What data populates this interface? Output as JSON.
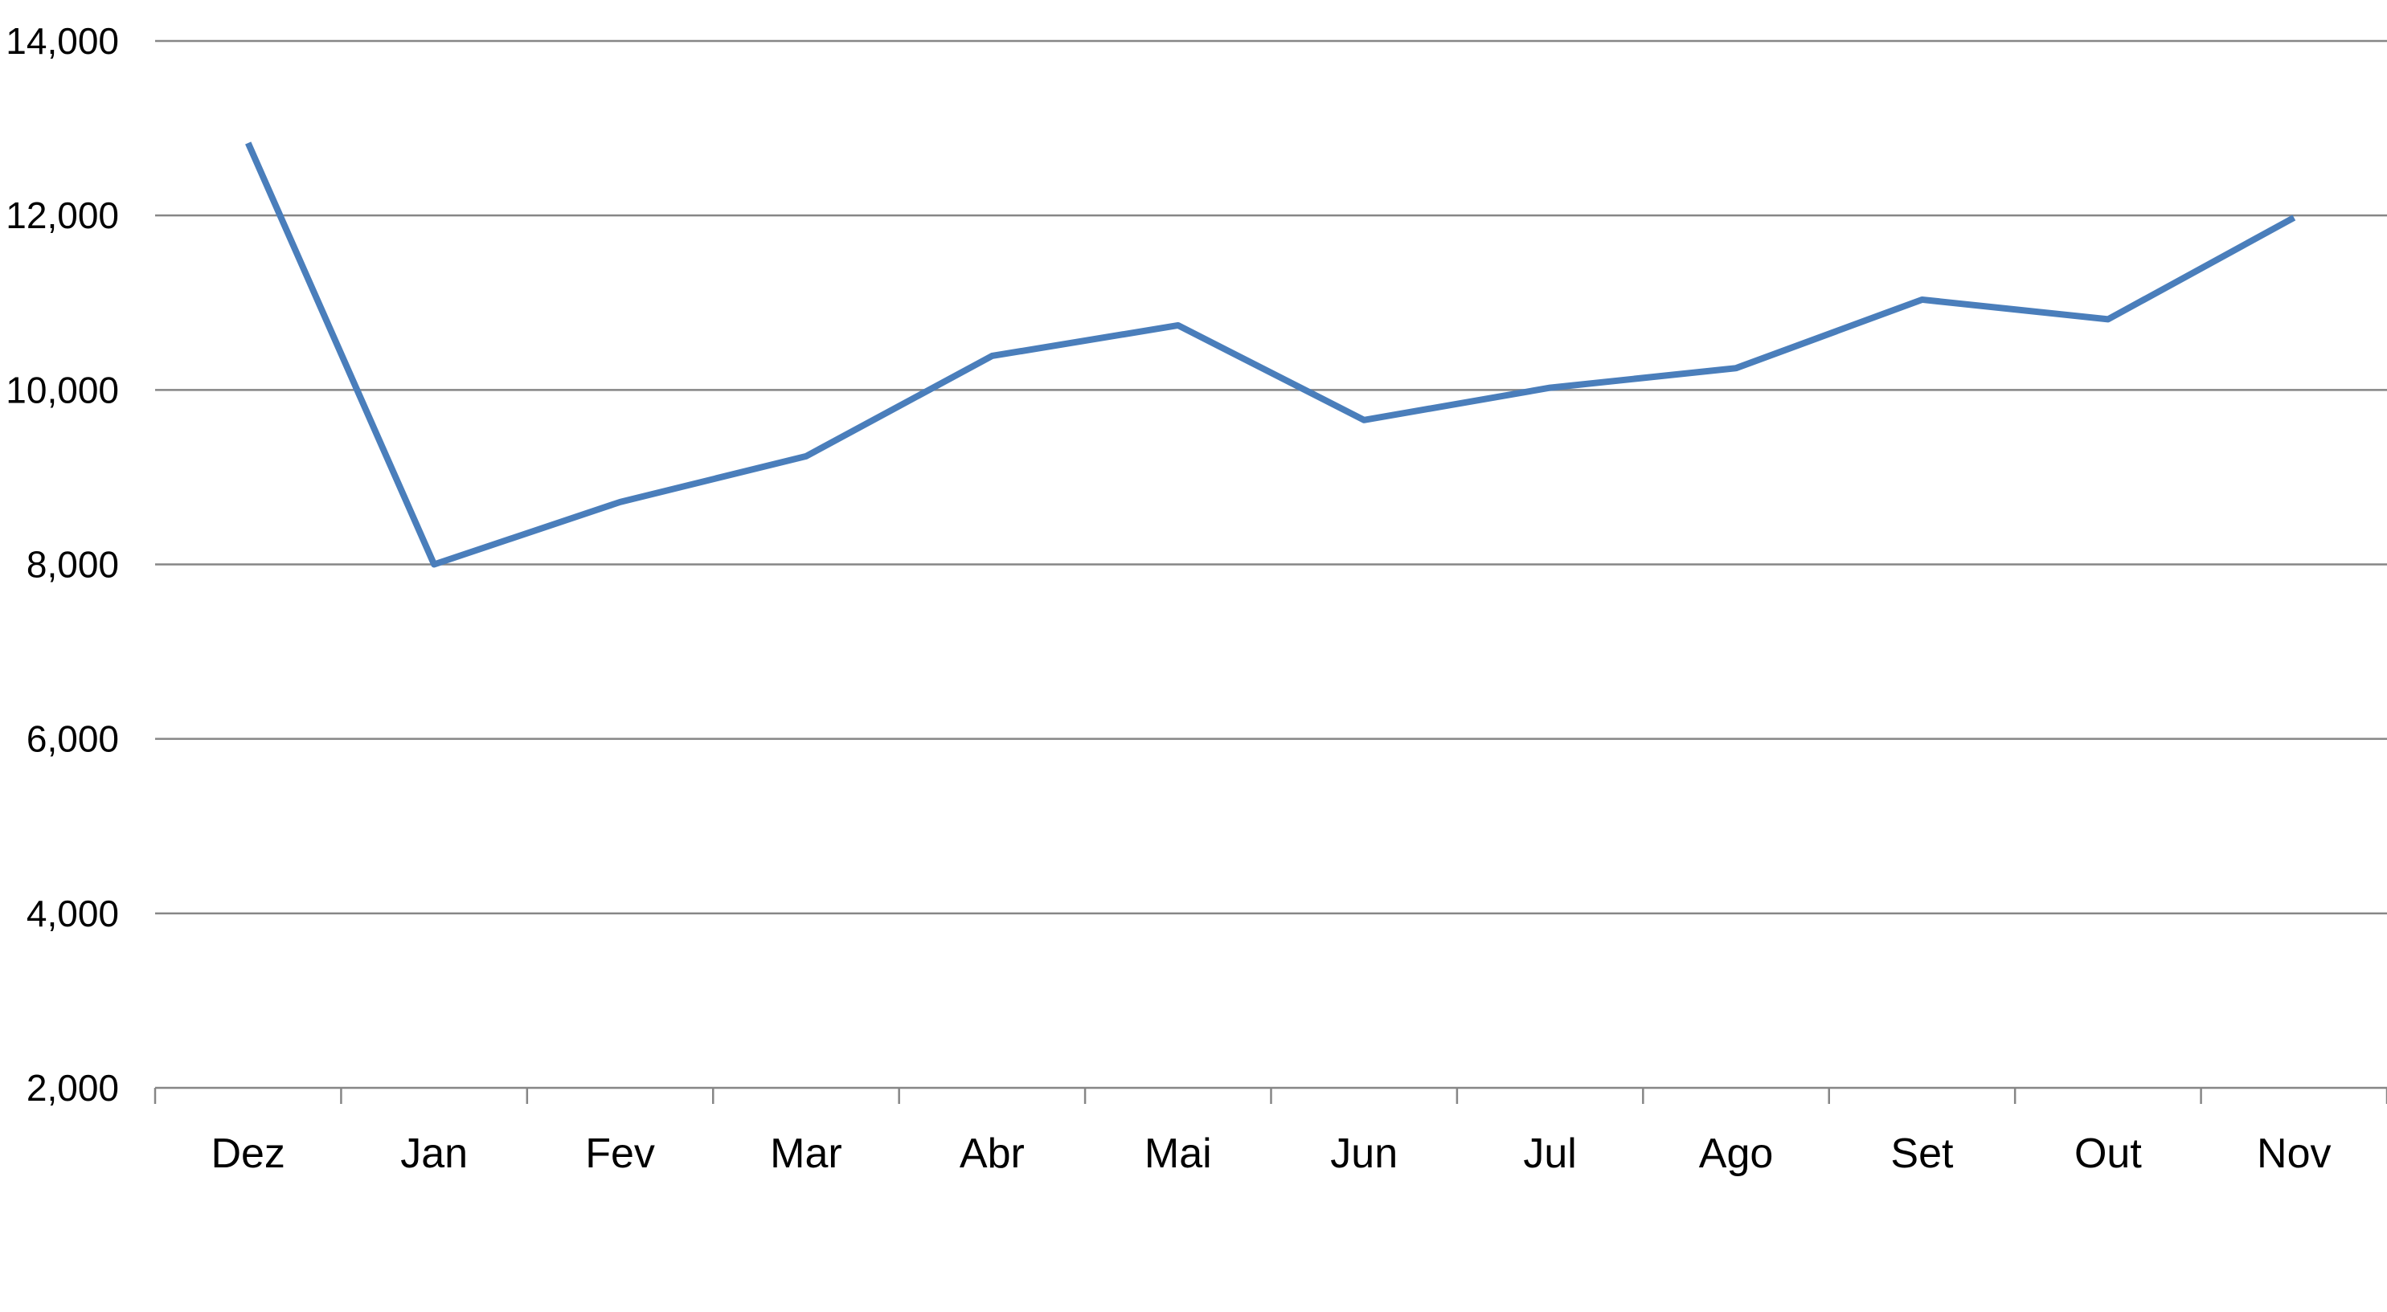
{
  "chart_data": {
    "type": "line",
    "title": "",
    "xlabel": "",
    "ylabel": "",
    "categories": [
      "Dez",
      "Jan",
      "Fev",
      "Mar",
      "Abr",
      "Mai",
      "Jun",
      "Jul",
      "Ago",
      "Set",
      "Out",
      "Nov"
    ],
    "series": [
      {
        "values": [
          12830,
          8000,
          8715,
          9240,
          10390,
          10740,
          9655,
          10025,
          10250,
          11035,
          10810,
          11975
        ]
      }
    ],
    "ylim": [
      2000,
      14000
    ],
    "yticks": [
      2000,
      4000,
      6000,
      8000,
      10000,
      12000,
      14000
    ],
    "ytick_labels": [
      "2,000",
      "4,000",
      "6,000",
      "8,000",
      "10,000",
      "12,000",
      "14,000"
    ],
    "grid": true,
    "legend": "none",
    "colors": {
      "line": "#4a7ebb",
      "grid": "#868686",
      "axis": "#868686"
    }
  }
}
